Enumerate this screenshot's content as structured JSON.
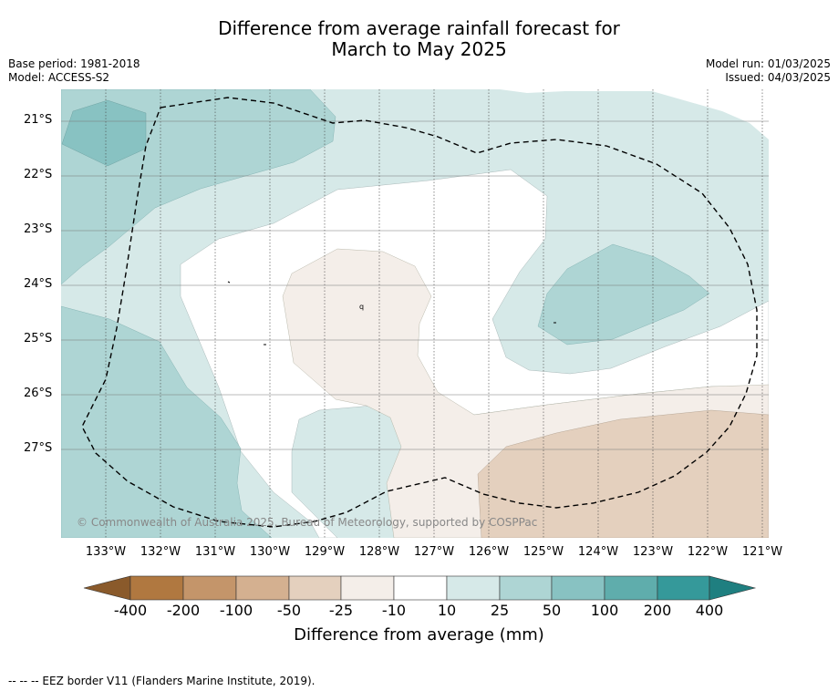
{
  "header": {
    "title_line1": "Difference from average rainfall forecast for",
    "title_line2": "March to May 2025",
    "base_period": "Base period: 1981-2018",
    "model": "Model: ACCESS-S2",
    "model_run": "Model run: 01/03/2025",
    "issued": "Issued: 04/03/2025"
  },
  "map": {
    "copyright": "© Commonwealth of Australia 2025, Bureau of Meteorology, supported by COSPPac",
    "x_ticks": [
      "133°W",
      "132°W",
      "131°W",
      "130°W",
      "129°W",
      "128°W",
      "127°W",
      "126°W",
      "125°W",
      "124°W",
      "123°W",
      "122°W",
      "121°W"
    ],
    "y_ticks": [
      "21°S",
      "22°S",
      "23°S",
      "24°S",
      "25°S",
      "26°S",
      "27°S"
    ]
  },
  "chart_data": {
    "type": "heatmap",
    "title": "Difference from average rainfall forecast for March to May 2025",
    "x_label": "",
    "y_label": "",
    "x_range_deg_w": [
      133.8,
      120.9
    ],
    "y_range_deg_s": [
      20.6,
      28.8
    ],
    "colorbar": {
      "label": "Difference from average (mm)",
      "ticks": [
        "-400",
        "-200",
        "-100",
        "-50",
        "-25",
        "-10",
        "10",
        "25",
        "50",
        "100",
        "200",
        "400"
      ],
      "colors": [
        "#8a5a2b",
        "#b07840",
        "#c4956a",
        "#d4b090",
        "#e4d0be",
        "#f4eee9",
        "#ffffff",
        "#d6e9e8",
        "#aed5d4",
        "#88c2c2",
        "#5fadac",
        "#35999a",
        "#1f7f80"
      ]
    },
    "regions": [
      {
        "level": "-10 to 10",
        "area": "central",
        "color": "#ffffff"
      },
      {
        "level": "-25 to -10",
        "area": "central and south-east",
        "color": "#f4eee9"
      },
      {
        "level": "-50 to -25",
        "area": "south-east corner",
        "color": "#e4d0be"
      },
      {
        "level": "10 to 25",
        "area": "north and east",
        "color": "#d6e9e8"
      },
      {
        "level": "25 to 50",
        "area": "north-west, south-west and east-centre",
        "color": "#aed5d4"
      },
      {
        "level": "50 to 100",
        "area": "small north-west patch",
        "color": "#88c2c2"
      }
    ],
    "eez_border": "EEZ border V11"
  },
  "footnote": "--  --  -- EEZ border V11 (Flanders Marine Institute, 2019)."
}
